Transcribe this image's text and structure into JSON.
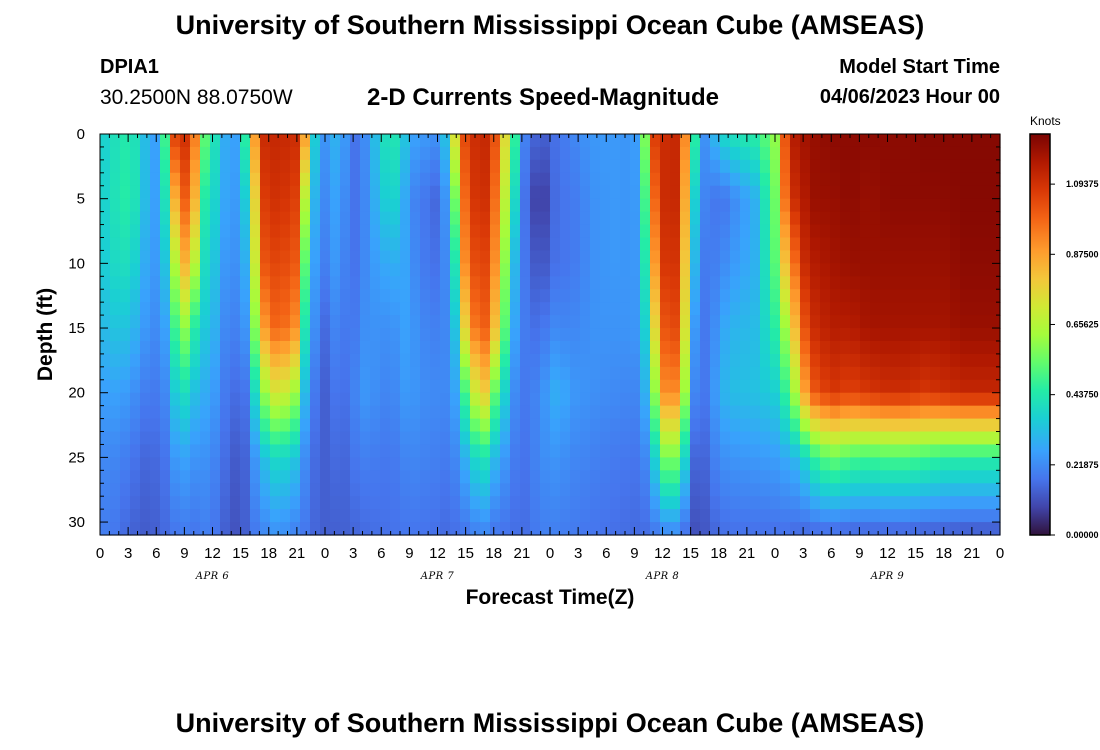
{
  "header": {
    "title": "University of Southern Mississippi Ocean Cube (AMSEAS)",
    "station_id": "DPIA1",
    "coords": "30.2500N  88.0750W",
    "variable": "2-D Currents Speed-Magnitude",
    "model_label": "Model Start Time",
    "model_date": "04/06/2023 Hour 00"
  },
  "footer": {
    "title": "University of Southern Mississippi Ocean Cube (AMSEAS)"
  },
  "chart_data": {
    "type": "heatmap",
    "title": "2-D Currents Speed-Magnitude",
    "xlabel": "Forecast Time(Z)",
    "ylabel": "Depth (ft)",
    "xlim": [
      0,
      96
    ],
    "ylim": [
      31,
      0
    ],
    "x_hours_per_tick": 3,
    "x_tick_labels": [
      "0",
      "3",
      "6",
      "9",
      "12",
      "15",
      "18",
      "21",
      "0",
      "3",
      "6",
      "9",
      "12",
      "15",
      "18",
      "21",
      "0",
      "3",
      "6",
      "9",
      "12",
      "15",
      "18",
      "21",
      "0",
      "3",
      "6",
      "9",
      "12",
      "15",
      "18",
      "21",
      "0"
    ],
    "y_ticks": [
      0,
      5,
      10,
      15,
      20,
      25,
      30
    ],
    "date_labels": [
      {
        "label": "APR 6",
        "hour": 12
      },
      {
        "label": "APR 7",
        "hour": 36
      },
      {
        "label": "APR 8",
        "hour": 60
      },
      {
        "label": "APR 9",
        "hour": 84
      }
    ],
    "colorbar": {
      "unit": "Knots",
      "min": 0.0,
      "max": 1.25,
      "tick_values": [
        0.0,
        0.21875,
        0.4375,
        0.65625,
        0.875,
        1.09375
      ],
      "tick_labels": [
        "0.00000",
        "0.21875",
        "0.43750",
        "0.65625",
        "0.87500",
        "1.09375"
      ]
    },
    "profile_hours": [
      0,
      2,
      3,
      4,
      5,
      6,
      7,
      8,
      9,
      10,
      11,
      12,
      13,
      14,
      15,
      16,
      17,
      19,
      21,
      22,
      23,
      24,
      25,
      26,
      27,
      28,
      30,
      31,
      32,
      33,
      34,
      36,
      37,
      38,
      39,
      40,
      41,
      42,
      44,
      45,
      47,
      48,
      49,
      50,
      51,
      52,
      53,
      55,
      57,
      58,
      59,
      60,
      61,
      62,
      63,
      64,
      65,
      66,
      67,
      70,
      72,
      73,
      74,
      75,
      76,
      78,
      80,
      82,
      84,
      86,
      88,
      90,
      92,
      94,
      96
    ],
    "profile_depths_ft": [
      0,
      5,
      10,
      15,
      20,
      25,
      31
    ],
    "speed_knots": [
      [
        0.35,
        0.35,
        0.34,
        0.31,
        0.26,
        0.22,
        0.2
      ],
      [
        0.42,
        0.43,
        0.4,
        0.34,
        0.27,
        0.21,
        0.18
      ],
      [
        0.44,
        0.45,
        0.4,
        0.33,
        0.25,
        0.19,
        0.15
      ],
      [
        0.4,
        0.4,
        0.35,
        0.29,
        0.22,
        0.17,
        0.14
      ],
      [
        0.3,
        0.3,
        0.27,
        0.24,
        0.19,
        0.15,
        0.13
      ],
      [
        0.26,
        0.26,
        0.25,
        0.22,
        0.19,
        0.16,
        0.14
      ],
      [
        0.5,
        0.42,
        0.34,
        0.27,
        0.22,
        0.18,
        0.16
      ],
      [
        1.05,
        0.85,
        0.65,
        0.48,
        0.35,
        0.25,
        0.18
      ],
      [
        1.1,
        1.0,
        0.85,
        0.6,
        0.4,
        0.27,
        0.19
      ],
      [
        1.0,
        0.9,
        0.7,
        0.45,
        0.33,
        0.24,
        0.18
      ],
      [
        0.55,
        0.45,
        0.4,
        0.35,
        0.29,
        0.24,
        0.2
      ],
      [
        0.45,
        0.4,
        0.36,
        0.32,
        0.27,
        0.22,
        0.19
      ],
      [
        0.3,
        0.29,
        0.26,
        0.23,
        0.2,
        0.18,
        0.15
      ],
      [
        0.26,
        0.25,
        0.23,
        0.2,
        0.17,
        0.14,
        0.12
      ],
      [
        0.28,
        0.26,
        0.24,
        0.21,
        0.16,
        0.12,
        0.11
      ],
      [
        0.65,
        0.45,
        0.35,
        0.28,
        0.2,
        0.18,
        0.17
      ],
      [
        1.1,
        1.05,
        1.0,
        0.85,
        0.55,
        0.3,
        0.2
      ],
      [
        1.12,
        1.1,
        1.05,
        1.0,
        0.75,
        0.4,
        0.24
      ],
      [
        1.1,
        1.05,
        1.0,
        0.9,
        0.6,
        0.33,
        0.2
      ],
      [
        0.85,
        0.6,
        0.45,
        0.35,
        0.27,
        0.21,
        0.18
      ],
      [
        0.32,
        0.28,
        0.25,
        0.22,
        0.18,
        0.16,
        0.15
      ],
      [
        0.24,
        0.22,
        0.2,
        0.16,
        0.14,
        0.14,
        0.14
      ],
      [
        0.3,
        0.27,
        0.25,
        0.21,
        0.18,
        0.16,
        0.14
      ],
      [
        0.26,
        0.23,
        0.21,
        0.19,
        0.17,
        0.15,
        0.14
      ],
      [
        0.17,
        0.17,
        0.17,
        0.18,
        0.2,
        0.18,
        0.15
      ],
      [
        0.2,
        0.2,
        0.21,
        0.23,
        0.25,
        0.2,
        0.16
      ],
      [
        0.38,
        0.34,
        0.28,
        0.24,
        0.22,
        0.19,
        0.17
      ],
      [
        0.44,
        0.38,
        0.28,
        0.22,
        0.2,
        0.18,
        0.17
      ],
      [
        0.4,
        0.35,
        0.3,
        0.26,
        0.24,
        0.2,
        0.18
      ],
      [
        0.28,
        0.22,
        0.25,
        0.27,
        0.26,
        0.22,
        0.18
      ],
      [
        0.26,
        0.2,
        0.2,
        0.22,
        0.23,
        0.21,
        0.18
      ],
      [
        0.23,
        0.15,
        0.17,
        0.2,
        0.22,
        0.2,
        0.17
      ],
      [
        0.35,
        0.26,
        0.23,
        0.22,
        0.22,
        0.19,
        0.16
      ],
      [
        0.8,
        0.6,
        0.45,
        0.35,
        0.28,
        0.22,
        0.17
      ],
      [
        1.05,
        1.0,
        0.95,
        0.8,
        0.5,
        0.3,
        0.18
      ],
      [
        1.1,
        1.08,
        1.03,
        0.95,
        0.7,
        0.38,
        0.2
      ],
      [
        1.12,
        1.1,
        1.05,
        1.0,
        0.8,
        0.42,
        0.21
      ],
      [
        1.05,
        1.0,
        0.95,
        0.85,
        0.55,
        0.32,
        0.18
      ],
      [
        0.55,
        0.45,
        0.35,
        0.3,
        0.24,
        0.2,
        0.17
      ],
      [
        0.22,
        0.2,
        0.2,
        0.2,
        0.18,
        0.17,
        0.16
      ],
      [
        0.12,
        0.04,
        0.1,
        0.16,
        0.22,
        0.22,
        0.2
      ],
      [
        0.16,
        0.14,
        0.16,
        0.22,
        0.28,
        0.24,
        0.2
      ],
      [
        0.18,
        0.18,
        0.18,
        0.22,
        0.3,
        0.24,
        0.2
      ],
      [
        0.2,
        0.18,
        0.18,
        0.21,
        0.26,
        0.22,
        0.19
      ],
      [
        0.22,
        0.2,
        0.2,
        0.22,
        0.24,
        0.21,
        0.19
      ],
      [
        0.24,
        0.22,
        0.22,
        0.23,
        0.24,
        0.21,
        0.18
      ],
      [
        0.25,
        0.24,
        0.24,
        0.24,
        0.23,
        0.2,
        0.18
      ],
      [
        0.25,
        0.25,
        0.25,
        0.24,
        0.22,
        0.19,
        0.17
      ],
      [
        0.24,
        0.24,
        0.24,
        0.24,
        0.21,
        0.18,
        0.16
      ],
      [
        0.5,
        0.42,
        0.36,
        0.31,
        0.26,
        0.2,
        0.16
      ],
      [
        1.05,
        0.95,
        0.85,
        0.7,
        0.52,
        0.32,
        0.18
      ],
      [
        1.1,
        1.1,
        1.07,
        1.0,
        0.9,
        0.55,
        0.2
      ],
      [
        1.12,
        1.12,
        1.1,
        1.05,
        0.95,
        0.6,
        0.22
      ],
      [
        1.1,
        1.1,
        1.05,
        1.0,
        0.85,
        0.5,
        0.2
      ],
      [
        0.65,
        0.5,
        0.42,
        0.32,
        0.26,
        0.18,
        0.12
      ],
      [
        0.22,
        0.2,
        0.18,
        0.17,
        0.16,
        0.12,
        0.1
      ],
      [
        0.25,
        0.22,
        0.2,
        0.2,
        0.21,
        0.18,
        0.14
      ],
      [
        0.35,
        0.16,
        0.2,
        0.25,
        0.28,
        0.22,
        0.16
      ],
      [
        0.4,
        0.2,
        0.24,
        0.3,
        0.32,
        0.24,
        0.17
      ],
      [
        0.45,
        0.3,
        0.3,
        0.32,
        0.33,
        0.25,
        0.17
      ],
      [
        0.6,
        0.55,
        0.52,
        0.45,
        0.36,
        0.26,
        0.17
      ],
      [
        1.0,
        0.95,
        0.8,
        0.6,
        0.45,
        0.28,
        0.17
      ],
      [
        1.15,
        1.1,
        0.95,
        0.8,
        0.6,
        0.3,
        0.16
      ],
      [
        1.18,
        1.15,
        1.1,
        1.0,
        0.85,
        0.36,
        0.15
      ],
      [
        1.2,
        1.2,
        1.15,
        1.1,
        1.0,
        0.45,
        0.15
      ],
      [
        1.22,
        1.2,
        1.18,
        1.15,
        1.08,
        0.55,
        0.15
      ],
      [
        1.22,
        1.22,
        1.2,
        1.15,
        1.05,
        0.5,
        0.14
      ],
      [
        1.22,
        1.2,
        1.2,
        1.18,
        1.08,
        0.48,
        0.14
      ],
      [
        1.22,
        1.22,
        1.2,
        1.18,
        1.1,
        0.5,
        0.14
      ],
      [
        1.22,
        1.22,
        1.2,
        1.18,
        1.1,
        0.5,
        0.14
      ],
      [
        1.23,
        1.22,
        1.2,
        1.18,
        1.08,
        0.48,
        0.13
      ],
      [
        1.23,
        1.22,
        1.2,
        1.18,
        1.1,
        0.45,
        0.13
      ],
      [
        1.23,
        1.23,
        1.22,
        1.2,
        1.12,
        0.45,
        0.12
      ],
      [
        1.23,
        1.23,
        1.22,
        1.2,
        1.12,
        0.45,
        0.12
      ],
      [
        1.23,
        1.23,
        1.22,
        1.2,
        1.12,
        0.45,
        0.12
      ]
    ]
  }
}
